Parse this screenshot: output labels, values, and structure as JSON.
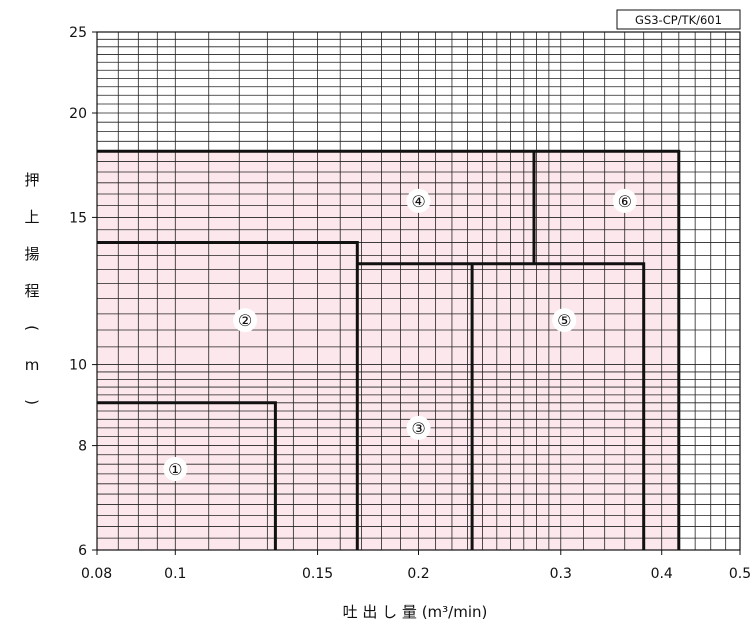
{
  "chart_data": {
    "type": "area",
    "code": "GS3-CP/TK/601",
    "xlabel": "吐 出 し 量 (m³/min)",
    "ylabel": [
      "押",
      "上",
      "揚",
      "程",
      "(",
      "m",
      ")"
    ],
    "x_scale": "log",
    "y_scale": "log",
    "xlim": [
      0.08,
      0.5
    ],
    "ylim": [
      6,
      25
    ],
    "x_ticks": [
      {
        "value": 0.08,
        "label": "0.08"
      },
      {
        "value": 0.1,
        "label": "0.1"
      },
      {
        "value": 0.15,
        "label": "0.15"
      },
      {
        "value": 0.2,
        "label": "0.2"
      },
      {
        "value": 0.3,
        "label": "0.3"
      },
      {
        "value": 0.4,
        "label": "0.4"
      },
      {
        "value": 0.5,
        "label": "0.5"
      }
    ],
    "y_ticks": [
      {
        "value": 6,
        "label": "6"
      },
      {
        "value": 8,
        "label": "8"
      },
      {
        "value": 10,
        "label": "10"
      },
      {
        "value": 15,
        "label": "15"
      },
      {
        "value": 20,
        "label": "20"
      },
      {
        "value": 25,
        "label": "25"
      }
    ],
    "grid": true,
    "shaded_area": {
      "x_max": 0.42,
      "y_max": 18,
      "color": "#fce8ec"
    },
    "boundaries": [
      {
        "points": [
          [
            0.08,
            9
          ],
          [
            0.133,
            9
          ],
          [
            0.133,
            6
          ]
        ]
      },
      {
        "points": [
          [
            0.08,
            14
          ],
          [
            0.168,
            14
          ],
          [
            0.168,
            6
          ]
        ]
      },
      {
        "points": [
          [
            0.168,
            13.2
          ],
          [
            0.38,
            13.2
          ],
          [
            0.38,
            6
          ]
        ]
      },
      {
        "points": [
          [
            0.233,
            13.2
          ],
          [
            0.233,
            6
          ]
        ]
      },
      {
        "points": [
          [
            0.08,
            18
          ],
          [
            0.42,
            18
          ],
          [
            0.42,
            6
          ]
        ]
      },
      {
        "points": [
          [
            0.278,
            18
          ],
          [
            0.278,
            13.2
          ]
        ]
      }
    ],
    "regions": [
      {
        "label": "①",
        "x": 0.1,
        "y": 7.5
      },
      {
        "label": "②",
        "x": 0.122,
        "y": 11.3
      },
      {
        "label": "③",
        "x": 0.2,
        "y": 8.4
      },
      {
        "label": "④",
        "x": 0.2,
        "y": 15.7
      },
      {
        "label": "⑤",
        "x": 0.303,
        "y": 11.3
      },
      {
        "label": "⑥",
        "x": 0.36,
        "y": 15.7
      }
    ],
    "colors": {
      "grid": "#222222",
      "boundary": "#111111",
      "fill": "#fce8ec"
    }
  }
}
